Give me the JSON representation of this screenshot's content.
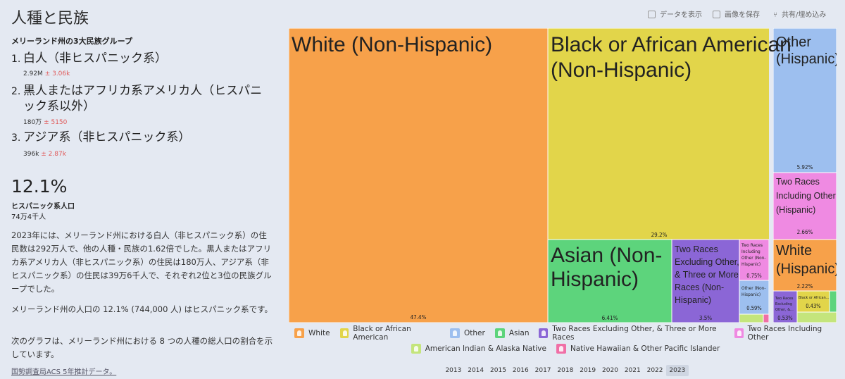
{
  "title": "人種と民族",
  "subhead": "メリーランド州の3大民族グループ",
  "toolbar": {
    "show_data": "データを表示",
    "save_image": "画像を保存",
    "share": "共有/埋め込み"
  },
  "ranks": [
    {
      "num": "1.",
      "name": "白人（非ヒスパニック系）",
      "value": "2.92M",
      "moe": "± 3.06k"
    },
    {
      "num": "2.",
      "name": "黒人またはアフリカ系アメリカ人（ヒスパニック系以外）",
      "value": "180万",
      "moe": "± 5150"
    },
    {
      "num": "3.",
      "name": "アジア系（非ヒスパニック系）",
      "value": "396k",
      "moe": "± 2.87k"
    }
  ],
  "hispanic": {
    "pct": "12.1%",
    "label": "ヒスパニック系人口",
    "count": "74万4千人"
  },
  "paragraphs": [
    "2023年には、メリーランド州における白人（非ヒスパニック系）の住民数は292万人で、他の人種・民族の1.62倍でした。黒人またはアフリカ系アメリカ人（非ヒスパニック系）の住民は180万人、アジア系（非ヒスパニック系）の住民は39万6千人で、それぞれ2位と3位の民族グループでした。",
    "メリーランド州の人口の 12.1% (744,000 人) はヒスパニック系です。",
    "次のグラフは、メリーランド州における 8 つの人種の総人口の割合を示しています。"
  ],
  "source": "国勢調査局ACS 5年推計データ。",
  "colors": {
    "white": "#f7a14a",
    "black": "#e2d54a",
    "other": "#9dbfef",
    "asian": "#5dd47c",
    "two_excl": "#8b66d6",
    "two_incl": "#ef8ae2",
    "aian": "#c4e57c",
    "nhpi": "#f06fa6"
  },
  "chart_data": {
    "type": "treemap",
    "tiles": [
      {
        "label": "White (Non-Hispanic)",
        "group": "White",
        "value": 47.4,
        "value_label": "47.4%"
      },
      {
        "label": "Black or African American (Non-Hispanic)",
        "group": "Black or African American",
        "value": 29.2,
        "value_label": "29.2%"
      },
      {
        "label": "Asian (Non-Hispanic)",
        "group": "Asian",
        "value": 6.41,
        "value_label": "6.41%"
      },
      {
        "label": "Two Races Excluding Other, & Three or More Races (Non-Hispanic)",
        "group": "Two Races Excluding Other, & Three or More Races",
        "value": 3.5,
        "value_label": "3.5%"
      },
      {
        "label": "Two Races Including Other (Non-Hispanic)",
        "group": "Two Races Including Other",
        "value": 0.75,
        "value_label": "0.75%"
      },
      {
        "label": "Other (Non-Hispanic)",
        "group": "Other",
        "value": 0.59,
        "value_label": "0.59%"
      },
      {
        "label": "Other (Hispanic)",
        "group": "Other",
        "value": 5.92,
        "value_label": "5.92%"
      },
      {
        "label": "Two Races Including Other (Hispanic)",
        "group": "Two Races Including Other",
        "value": 2.66,
        "value_label": "2.66%"
      },
      {
        "label": "White (Hispanic)",
        "group": "White",
        "value": 2.22,
        "value_label": "2.22%"
      },
      {
        "label": "Two Races Excluding Other, & Three or More Races (Hispanic)",
        "group": "Two Races Excluding Other, & Three or More Races",
        "value": 0.53,
        "value_label": "0.53%"
      },
      {
        "label": "Black or African American (Hispanic)",
        "group": "Black or African American",
        "value": 0.43,
        "value_label": "0.43%"
      },
      {
        "label": "",
        "group": "American Indian & Alaska Native",
        "value": null,
        "value_label": ""
      },
      {
        "label": "",
        "group": "Native Hawaiian & Other Pacific Islander",
        "value": null,
        "value_label": ""
      },
      {
        "label": "",
        "group": "Asian",
        "value": null,
        "value_label": ""
      },
      {
        "label": "",
        "group": "American Indian & Alaska Native",
        "value": null,
        "value_label": ""
      }
    ],
    "tile_texts": {
      "white_nh": "White (Non-Hispanic)",
      "black_nh": [
        "Black or African American",
        "(Non-Hispanic)"
      ],
      "asian_nh": [
        "Asian (Non-",
        "Hispanic)"
      ],
      "two_excl_nh": [
        "Two Races",
        "Excluding Other,",
        "& Three or More",
        "Races (Non-",
        "Hispanic)"
      ],
      "two_incl_nh": [
        "Two Races",
        "Including",
        "Other (Non-",
        "Hispanic)"
      ],
      "other_nh": [
        "Other (Non-",
        "Hispanic)"
      ],
      "other_h": [
        "Other",
        "(Hispanic)"
      ],
      "two_incl_h": [
        "Two Races",
        "Including Other",
        "(Hispanic)"
      ],
      "white_h": [
        "White",
        "(Hispanic)"
      ],
      "two_excl_h": [
        "Two Races",
        "Excluding",
        "Other, &..."
      ],
      "black_h": "Black or African..."
    },
    "legend": [
      {
        "name": "White",
        "color": "#f7a14a"
      },
      {
        "name": "Black or African American",
        "color": "#e2d54a"
      },
      {
        "name": "Other",
        "color": "#9dbfef"
      },
      {
        "name": "Asian",
        "color": "#5dd47c"
      },
      {
        "name": "Two Races Excluding Other, & Three or More Races",
        "color": "#8b66d6"
      },
      {
        "name": "Two Races Including Other",
        "color": "#ef8ae2"
      },
      {
        "name": "American Indian & Alaska Native",
        "color": "#c4e57c"
      },
      {
        "name": "Native Hawaiian & Other Pacific Islander",
        "color": "#f06fa6"
      }
    ]
  },
  "years": [
    "2013",
    "2014",
    "2015",
    "2016",
    "2017",
    "2018",
    "2019",
    "2020",
    "2021",
    "2022",
    "2023"
  ],
  "selected_year": "2023"
}
